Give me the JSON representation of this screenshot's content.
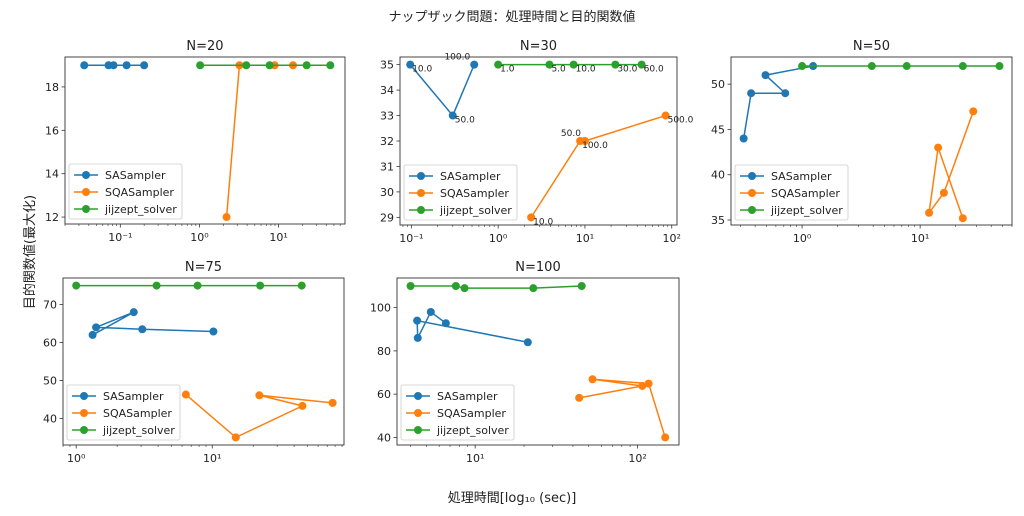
{
  "figure": {
    "title": "ナップザック問題：処理時間と目的関数値",
    "ylabel": "目的関数値(最大化)",
    "xlabel": "処理時間[log₁₀ (sec)]"
  },
  "colors": {
    "SASampler": "#1f77b4",
    "SQASampler": "#ff7f0e",
    "jijzept_solver": "#2ca02c"
  },
  "chart_data": [
    {
      "type": "line",
      "title": "N=20",
      "xscale": "log",
      "xlim": [
        0.02,
        69
      ],
      "ylim": [
        11.68,
        19.38
      ],
      "xticks": [
        {
          "v": 0.1,
          "label": "10⁻¹"
        },
        {
          "v": 1,
          "label": "10⁰"
        },
        {
          "v": 10,
          "label": "10¹"
        }
      ],
      "yticks": [
        12,
        14,
        16,
        18
      ],
      "legend": "lower-left",
      "series": [
        {
          "name": "SASampler",
          "points": [
            [
              0.035,
              19
            ],
            [
              0.071,
              19
            ],
            [
              0.082,
              19
            ],
            [
              0.12,
              19
            ],
            [
              0.2,
              19
            ]
          ]
        },
        {
          "name": "SQASampler",
          "points": [
            [
              2.2,
              12
            ],
            [
              3.2,
              19
            ],
            [
              8.9,
              19
            ],
            [
              15.2,
              19
            ]
          ]
        },
        {
          "name": "jijzept_solver",
          "points": [
            [
              1.02,
              19
            ],
            [
              3.9,
              19
            ],
            [
              7.7,
              19
            ],
            [
              22.6,
              19
            ],
            [
              45,
              19
            ]
          ]
        }
      ]
    },
    {
      "type": "line",
      "title": "N=30",
      "xscale": "log",
      "xlim": [
        0.074,
        115
      ],
      "ylim": [
        28.7,
        35.3
      ],
      "xticks": [
        {
          "v": 0.1,
          "label": "10⁻¹"
        },
        {
          "v": 1,
          "label": "10⁰"
        },
        {
          "v": 10,
          "label": "10¹"
        },
        {
          "v": 100,
          "label": "10²"
        }
      ],
      "yticks": [
        29,
        30,
        31,
        32,
        33,
        34,
        35
      ],
      "legend": "lower-left",
      "series": [
        {
          "name": "SASampler",
          "points": [
            [
              0.097,
              35
            ],
            [
              0.3,
              33
            ],
            [
              0.53,
              35
            ]
          ],
          "labels": [
            "10.0",
            "50.0",
            "100.0"
          ]
        },
        {
          "name": "SQASampler",
          "points": [
            [
              2.4,
              29
            ],
            [
              8.8,
              32
            ],
            [
              10,
              32
            ],
            [
              85,
              33
            ]
          ],
          "labels": [
            "10.0",
            "100.0",
            "50.0",
            "500.0"
          ]
        },
        {
          "name": "jijzept_solver",
          "points": [
            [
              1.0,
              35
            ],
            [
              3.9,
              35
            ],
            [
              7.4,
              35
            ],
            [
              22.4,
              35
            ],
            [
              45,
              35
            ]
          ],
          "labels": [
            "1.0",
            "5.0",
            "10.0",
            "30.0",
            "60.0"
          ]
        }
      ]
    },
    {
      "type": "line",
      "title": "N=50",
      "xscale": "log",
      "xlim": [
        0.25,
        60
      ],
      "ylim": [
        34.45,
        53
      ],
      "xticks": [
        {
          "v": 1,
          "label": "10⁰"
        },
        {
          "v": 10,
          "label": "10¹"
        }
      ],
      "yticks": [
        35,
        40,
        45,
        50
      ],
      "legend": "lower-left",
      "series": [
        {
          "name": "SASampler",
          "points": [
            [
              0.32,
              44
            ],
            [
              0.37,
              49
            ],
            [
              0.72,
              49
            ],
            [
              0.49,
              51
            ],
            [
              1.24,
              52
            ]
          ]
        },
        {
          "name": "SQASampler",
          "points": [
            [
              23,
              35.2
            ],
            [
              14.2,
              43
            ],
            [
              11.9,
              35.8
            ],
            [
              15.9,
              38
            ],
            [
              28.2,
              47
            ]
          ]
        },
        {
          "name": "jijzept_solver",
          "points": [
            [
              1.0,
              52
            ],
            [
              3.9,
              52
            ],
            [
              7.7,
              52
            ],
            [
              23,
              52
            ],
            [
              47,
              52
            ]
          ]
        }
      ]
    },
    {
      "type": "line",
      "title": "N=75",
      "xscale": "log",
      "xlim": [
        0.8,
        93
      ],
      "ylim": [
        33.0,
        77.0
      ],
      "xticks": [
        {
          "v": 1,
          "label": "10⁰"
        },
        {
          "v": 10,
          "label": "10¹"
        }
      ],
      "yticks": [
        40,
        50,
        60,
        70
      ],
      "legend": "lower-left",
      "series": [
        {
          "name": "SASampler",
          "points": [
            [
              1.32,
              62
            ],
            [
              2.65,
              68
            ],
            [
              1.4,
              64
            ],
            [
              3.06,
              63.5
            ],
            [
              10.2,
              62.9
            ]
          ]
        },
        {
          "name": "SQASampler",
          "points": [
            [
              6.4,
              46.3
            ],
            [
              14.9,
              35
            ],
            [
              46,
              43.3
            ],
            [
              22.2,
              46.1
            ],
            [
              76.7,
              44.1
            ]
          ]
        },
        {
          "name": "jijzept_solver",
          "points": [
            [
              1.0,
              75
            ],
            [
              3.9,
              75
            ],
            [
              7.8,
              75
            ],
            [
              22.5,
              75
            ],
            [
              45.5,
              75
            ]
          ]
        }
      ]
    },
    {
      "type": "line",
      "title": "N=100",
      "xscale": "log",
      "xlim": [
        3.3,
        180
      ],
      "ylim": [
        36.5,
        113.7
      ],
      "xticks": [
        {
          "v": 10,
          "label": "10¹"
        },
        {
          "v": 100,
          "label": "10²"
        }
      ],
      "yticks": [
        40,
        60,
        80,
        100
      ],
      "legend": "lower-left",
      "series": [
        {
          "name": "SASampler",
          "points": [
            [
              21.1,
              84
            ],
            [
              4.39,
              94
            ],
            [
              4.43,
              86
            ],
            [
              5.33,
              98
            ],
            [
              6.6,
              92.8
            ]
          ]
        },
        {
          "name": "SQASampler",
          "points": [
            [
              148,
              40
            ],
            [
              117,
              64.9
            ],
            [
              52.8,
              66.9
            ],
            [
              107,
              63.8
            ],
            [
              43.7,
              58.3
            ]
          ]
        },
        {
          "name": "jijzept_solver",
          "points": [
            [
              4.0,
              110
            ],
            [
              7.6,
              110
            ],
            [
              8.6,
              109
            ],
            [
              22.8,
              109
            ],
            [
              45.3,
              110
            ]
          ]
        }
      ]
    }
  ]
}
